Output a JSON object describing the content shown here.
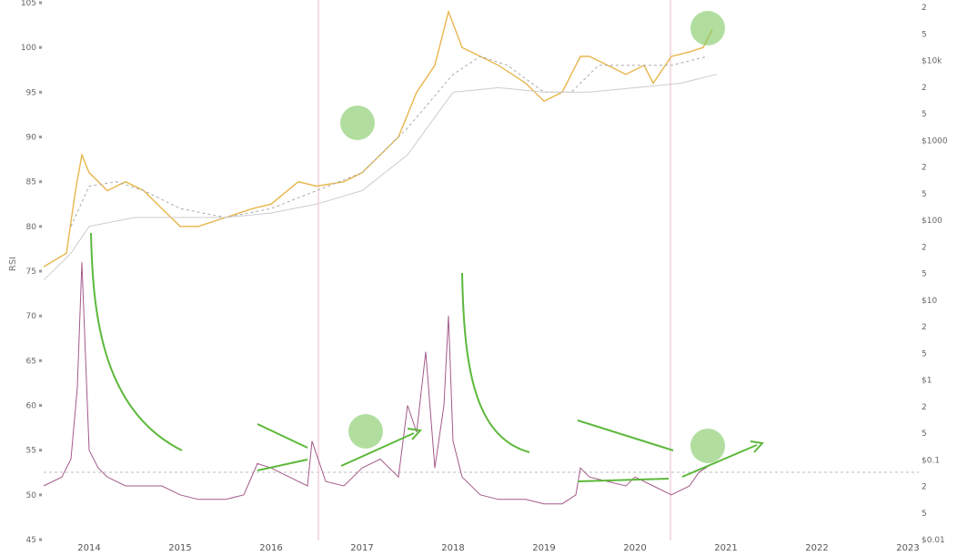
{
  "chart_data": {
    "type": "line",
    "ylabel": "RSI",
    "x_ticks": [
      "2014",
      "2015",
      "2016",
      "2017",
      "2018",
      "2019",
      "2020",
      "2021",
      "2022",
      "2023"
    ],
    "left_axis": {
      "ticks": [
        45,
        50,
        55,
        60,
        65,
        70,
        75,
        80,
        85,
        90,
        95,
        100,
        105
      ],
      "tick_labels": [
        "45",
        "50",
        "55",
        "60",
        "65",
        "70",
        "75",
        "80",
        "85",
        "90",
        "95",
        "100",
        "105"
      ],
      "ylim": [
        45,
        105
      ]
    },
    "right_axis": {
      "scale": "log",
      "tick_labels": [
        "$0.01",
        "5",
        "2",
        "$0.1",
        "5",
        "2",
        "$1",
        "5",
        "2",
        "$10",
        "5",
        "2",
        "$100",
        "5",
        "2",
        "$1000",
        "5",
        "2",
        "$10k",
        "5",
        "2"
      ]
    },
    "reference_line": {
      "axis": "left",
      "value": 50,
      "style": "dashed"
    },
    "vertical_markers": [
      2016.5,
      2020.37
    ],
    "series": [
      {
        "role": "price",
        "color": "#e8b64c",
        "x": [
          2013.5,
          2013.75,
          2013.85,
          2013.92,
          2014.0,
          2014.2,
          2014.4,
          2014.6,
          2014.8,
          2015.0,
          2015.2,
          2015.5,
          2015.8,
          2016.0,
          2016.3,
          2016.5,
          2016.8,
          2017.0,
          2017.2,
          2017.4,
          2017.6,
          2017.8,
          2017.95,
          2018.1,
          2018.3,
          2018.5,
          2018.8,
          2019.0,
          2019.2,
          2019.4,
          2019.5,
          2019.7,
          2019.9,
          2020.1,
          2020.2,
          2020.4,
          2020.6,
          2020.75,
          2020.85
        ],
        "y": [
          75.5,
          77,
          84,
          88,
          86,
          84,
          85,
          84,
          82,
          80,
          80,
          81,
          82,
          82.5,
          85,
          84.5,
          85,
          86,
          88,
          90,
          95,
          98,
          104,
          100,
          99,
          98,
          96,
          94,
          95,
          99,
          99,
          98,
          97,
          98,
          96,
          99,
          99.5,
          100,
          102
        ]
      },
      {
        "role": "price-moving-average-dashed",
        "color": "#aaaaaa",
        "x": [
          2013.8,
          2014.0,
          2014.3,
          2014.6,
          2015.0,
          2015.5,
          2016.0,
          2016.5,
          2017.0,
          2017.5,
          2018.0,
          2018.3,
          2018.6,
          2019.0,
          2019.3,
          2019.6,
          2020.0,
          2020.4,
          2020.8
        ],
        "y": [
          80,
          84.5,
          85,
          84,
          82,
          81,
          82,
          84,
          86,
          91,
          97,
          99,
          98,
          95,
          95,
          98,
          98,
          98,
          99
        ]
      },
      {
        "role": "price-moving-average-long",
        "color": "#cccccc",
        "x": [
          2013.5,
          2013.8,
          2014.0,
          2014.5,
          2015.0,
          2015.5,
          2016.0,
          2016.5,
          2017.0,
          2017.5,
          2018.0,
          2018.5,
          2019.0,
          2019.5,
          2020.0,
          2020.5,
          2020.9
        ],
        "y": [
          74,
          77,
          80,
          81,
          81,
          81,
          81.5,
          82.5,
          84,
          88,
          95,
          95.5,
          95,
          95,
          95.5,
          96,
          97
        ]
      },
      {
        "role": "rsi",
        "color": "#a35a8a",
        "x": [
          2013.5,
          2013.7,
          2013.8,
          2013.87,
          2013.92,
          2014.0,
          2014.1,
          2014.2,
          2014.4,
          2014.6,
          2014.8,
          2015.0,
          2015.2,
          2015.5,
          2015.7,
          2015.85,
          2016.0,
          2016.2,
          2016.4,
          2016.45,
          2016.6,
          2016.8,
          2017.0,
          2017.2,
          2017.4,
          2017.5,
          2017.6,
          2017.7,
          2017.8,
          2017.9,
          2017.95,
          2018.0,
          2018.1,
          2018.3,
          2018.5,
          2018.8,
          2019.0,
          2019.2,
          2019.35,
          2019.4,
          2019.5,
          2019.7,
          2019.9,
          2020.0,
          2020.2,
          2020.4,
          2020.6,
          2020.7,
          2020.85
        ],
        "y": [
          51,
          52,
          54,
          62,
          76,
          55,
          53,
          52,
          51,
          51,
          51,
          50,
          49.5,
          49.5,
          50,
          53.5,
          53,
          52,
          51,
          56,
          51.5,
          51,
          53,
          54,
          52,
          60,
          57,
          66,
          53,
          60,
          70,
          56,
          52,
          50,
          49.5,
          49.5,
          49,
          49,
          50,
          53,
          52,
          51.5,
          51,
          52,
          51,
          50,
          51,
          52.5,
          53.5
        ]
      }
    ],
    "annotations": [
      {
        "type": "circle",
        "color": "#7dc85f",
        "label": "highlight"
      },
      {
        "type": "trend-arrow",
        "color": "#5cb83a"
      }
    ]
  }
}
